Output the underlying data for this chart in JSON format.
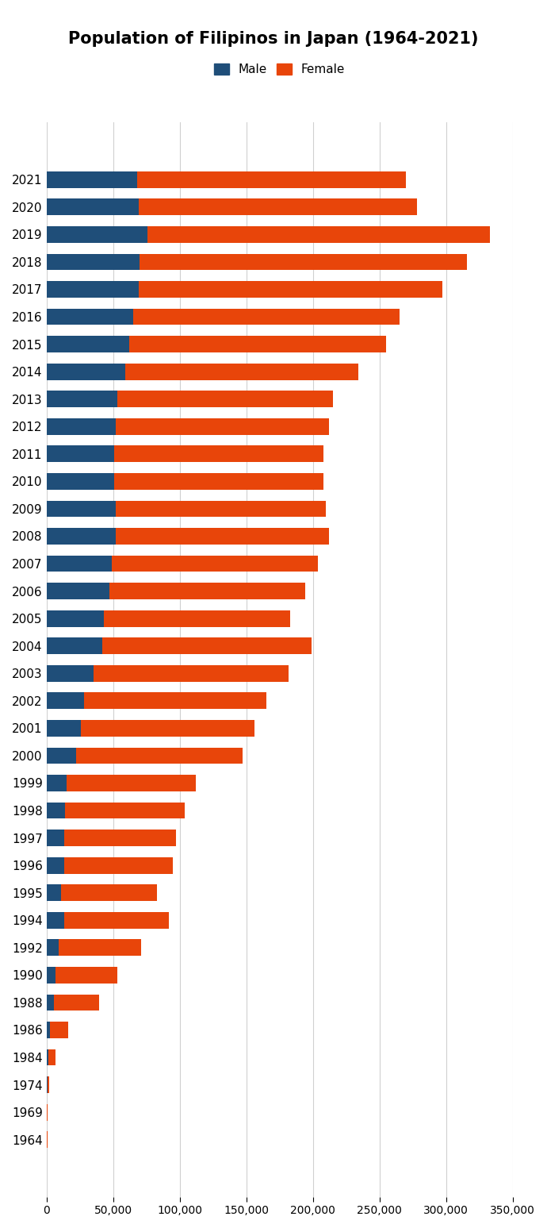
{
  "title": "Population of Filipinos in Japan (1964-2021)",
  "male_color": "#1F4E79",
  "female_color": "#E8450A",
  "years": [
    1964,
    1969,
    1974,
    1984,
    1986,
    1988,
    1990,
    1992,
    1994,
    1995,
    1996,
    1997,
    1998,
    1999,
    2000,
    2001,
    2002,
    2003,
    2004,
    2005,
    2006,
    2007,
    2008,
    2009,
    2010,
    2011,
    2012,
    2013,
    2014,
    2015,
    2016,
    2017,
    2018,
    2019,
    2020,
    2021
  ],
  "male": [
    200,
    400,
    800,
    1200,
    2500,
    5500,
    7000,
    9000,
    13000,
    11000,
    13000,
    13000,
    14000,
    15000,
    22000,
    26000,
    28000,
    35000,
    42000,
    43000,
    47000,
    49000,
    52000,
    52000,
    51000,
    51000,
    52000,
    53000,
    59000,
    62000,
    65000,
    69000,
    70000,
    76000,
    69000,
    68000
  ],
  "female": [
    300,
    600,
    1100,
    5800,
    14000,
    34000,
    46000,
    62000,
    79000,
    72000,
    82000,
    84000,
    90000,
    97000,
    125000,
    130000,
    137000,
    147000,
    157000,
    140000,
    147000,
    155000,
    160000,
    158000,
    157000,
    157000,
    160000,
    162000,
    175000,
    193000,
    200000,
    228000,
    246000,
    257000,
    209000,
    202000
  ],
  "xlim": [
    0,
    350000
  ],
  "xticks": [
    0,
    50000,
    100000,
    150000,
    200000,
    250000,
    300000,
    350000
  ],
  "xtick_labels": [
    "0",
    "50,000",
    "100,000",
    "150,000",
    "200,000",
    "250,000",
    "300,000",
    "350,000"
  ]
}
